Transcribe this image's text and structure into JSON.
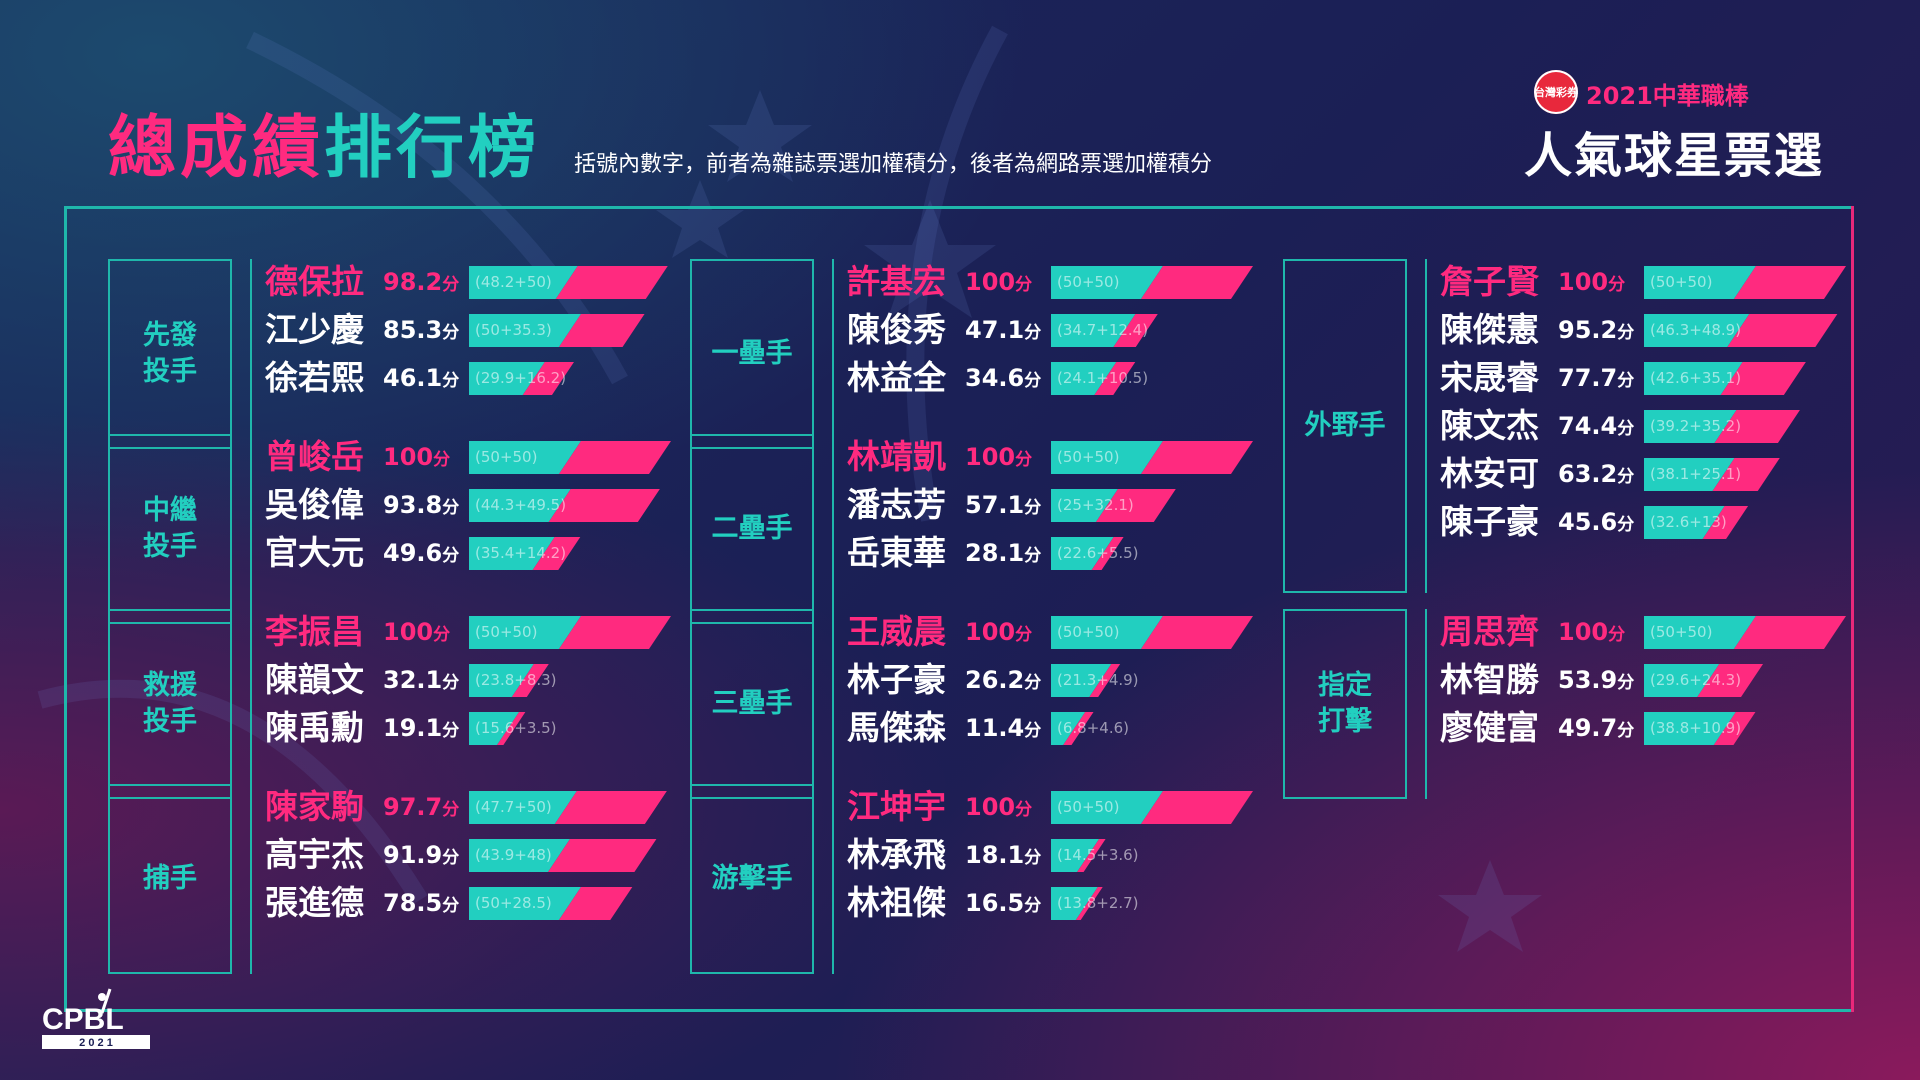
{
  "header": {
    "title_part1": "總成績",
    "title_part2": "排行榜",
    "subtitle": "括號內數字，前者為雜誌票選加權積分，後者為網路票選加權積分"
  },
  "event": {
    "sponsor": "台灣彩券",
    "year_text": "2021中華職棒",
    "title": "人氣球星票選"
  },
  "score_unit": "分",
  "colors": {
    "pink": "#ff2a7f",
    "teal": "#22cfc0",
    "frame": "#1fb7ab"
  },
  "categories": [
    {
      "label": "先發\n投手",
      "players": [
        {
          "name": "德保拉",
          "score": "98.2",
          "breakdown": "(48.2+50)",
          "magazine": 48.2,
          "online": 50
        },
        {
          "name": "江少慶",
          "score": "85.3",
          "breakdown": "(50+35.3)",
          "magazine": 50,
          "online": 35.3
        },
        {
          "name": "徐若熙",
          "score": "46.1",
          "breakdown": "(29.9+16.2)",
          "magazine": 29.9,
          "online": 16.2
        }
      ]
    },
    {
      "label": "中繼\n投手",
      "players": [
        {
          "name": "曾峻岳",
          "score": "100",
          "breakdown": "(50+50)",
          "magazine": 50,
          "online": 50
        },
        {
          "name": "吳俊偉",
          "score": "93.8",
          "breakdown": "(44.3+49.5)",
          "magazine": 44.3,
          "online": 49.5
        },
        {
          "name": "官大元",
          "score": "49.6",
          "breakdown": "(35.4+14.2)",
          "magazine": 35.4,
          "online": 14.2
        }
      ]
    },
    {
      "label": "救援\n投手",
      "players": [
        {
          "name": "李振昌",
          "score": "100",
          "breakdown": "(50+50)",
          "magazine": 50,
          "online": 50
        },
        {
          "name": "陳韻文",
          "score": "32.1",
          "breakdown": "(23.8+8.3)",
          "magazine": 23.8,
          "online": 8.3
        },
        {
          "name": "陳禹勳",
          "score": "19.1",
          "breakdown": "(15.6+3.5)",
          "magazine": 15.6,
          "online": 3.5
        }
      ]
    },
    {
      "label": "捕手",
      "players": [
        {
          "name": "陳家駒",
          "score": "97.7",
          "breakdown": "(47.7+50)",
          "magazine": 47.7,
          "online": 50
        },
        {
          "name": "高宇杰",
          "score": "91.9",
          "breakdown": "(43.9+48)",
          "magazine": 43.9,
          "online": 48
        },
        {
          "name": "張進德",
          "score": "78.5",
          "breakdown": "(50+28.5)",
          "magazine": 50,
          "online": 28.5
        }
      ]
    },
    {
      "label": "一壘手",
      "players": [
        {
          "name": "許基宏",
          "score": "100",
          "breakdown": "(50+50)",
          "magazine": 50,
          "online": 50
        },
        {
          "name": "陳俊秀",
          "score": "47.1",
          "breakdown": "(34.7+12.4)",
          "magazine": 34.7,
          "online": 12.4
        },
        {
          "name": "林益全",
          "score": "34.6",
          "breakdown": "(24.1+10.5)",
          "magazine": 24.1,
          "online": 10.5
        }
      ]
    },
    {
      "label": "二壘手",
      "players": [
        {
          "name": "林靖凱",
          "score": "100",
          "breakdown": "(50+50)",
          "magazine": 50,
          "online": 50
        },
        {
          "name": "潘志芳",
          "score": "57.1",
          "breakdown": "(25+32.1)",
          "magazine": 25,
          "online": 32.1
        },
        {
          "name": "岳東華",
          "score": "28.1",
          "breakdown": "(22.6+5.5)",
          "magazine": 22.6,
          "online": 5.5
        }
      ]
    },
    {
      "label": "三壘手",
      "players": [
        {
          "name": "王威晨",
          "score": "100",
          "breakdown": "(50+50)",
          "magazine": 50,
          "online": 50
        },
        {
          "name": "林子豪",
          "score": "26.2",
          "breakdown": "(21.3+4.9)",
          "magazine": 21.3,
          "online": 4.9
        },
        {
          "name": "馬傑森",
          "score": "11.4",
          "breakdown": "(6.8+4.6)",
          "magazine": 6.8,
          "online": 4.6
        }
      ]
    },
    {
      "label": "游擊手",
      "players": [
        {
          "name": "江坤宇",
          "score": "100",
          "breakdown": "(50+50)",
          "magazine": 50,
          "online": 50
        },
        {
          "name": "林承飛",
          "score": "18.1",
          "breakdown": "(14.5+3.6)",
          "magazine": 14.5,
          "online": 3.6
        },
        {
          "name": "林祖傑",
          "score": "16.5",
          "breakdown": "(13.8+2.7)",
          "magazine": 13.8,
          "online": 2.7
        }
      ]
    },
    {
      "label": "外野手",
      "players": [
        {
          "name": "詹子賢",
          "score": "100",
          "breakdown": "(50+50)",
          "magazine": 50,
          "online": 50
        },
        {
          "name": "陳傑憲",
          "score": "95.2",
          "breakdown": "(46.3+48.9)",
          "magazine": 46.3,
          "online": 48.9
        },
        {
          "name": "宋晟睿",
          "score": "77.7",
          "breakdown": "(42.6+35.1)",
          "magazine": 42.6,
          "online": 35.1
        },
        {
          "name": "陳文杰",
          "score": "74.4",
          "breakdown": "(39.2+35.2)",
          "magazine": 39.2,
          "online": 35.2
        },
        {
          "name": "林安可",
          "score": "63.2",
          "breakdown": "(38.1+25.1)",
          "magazine": 38.1,
          "online": 25.1
        },
        {
          "name": "陳子豪",
          "score": "45.6",
          "breakdown": "(32.6+13)",
          "magazine": 32.6,
          "online": 13
        }
      ]
    },
    {
      "label": "指定\n打擊",
      "players": [
        {
          "name": "周思齊",
          "score": "100",
          "breakdown": "(50+50)",
          "magazine": 50,
          "online": 50
        },
        {
          "name": "林智勝",
          "score": "53.9",
          "breakdown": "(29.6+24.3)",
          "magazine": 29.6,
          "online": 24.3
        },
        {
          "name": "廖健富",
          "score": "49.7",
          "breakdown": "(38.8+10.9)",
          "magazine": 38.8,
          "online": 10.9
        }
      ]
    }
  ],
  "footer": {
    "logo_text": "CPBL",
    "logo_year": "2 0 2 1"
  }
}
